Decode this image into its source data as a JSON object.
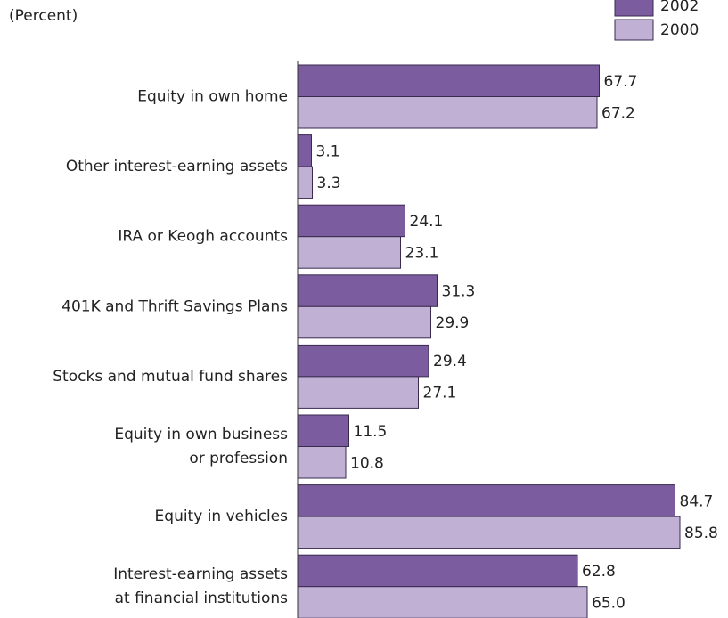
{
  "chart_data": {
    "type": "bar",
    "orientation": "horizontal",
    "subtitle": "(Percent)",
    "categories": [
      "Equity in own home",
      "Other interest-earning assets",
      "IRA or Keogh accounts",
      "401K and Thrift Savings Plans",
      "Stocks and mutual fund shares",
      "Equity in own business\nor profession",
      "Equity in vehicles",
      "Interest-earning assets\nat financial institutions"
    ],
    "series": [
      {
        "name": "2002",
        "color": "#7b5c9e",
        "values": [
          67.7,
          3.1,
          24.1,
          31.3,
          29.4,
          11.5,
          84.7,
          62.8
        ],
        "value_labels": [
          "67.7",
          "3.1",
          "24.1",
          "31.3",
          "29.4",
          "11.5",
          "84.7",
          "62.8"
        ]
      },
      {
        "name": "2000",
        "color": "#c0b0d4",
        "values": [
          67.2,
          3.3,
          23.1,
          29.9,
          27.1,
          10.8,
          85.8,
          65.0
        ],
        "value_labels": [
          "67.2",
          "3.3",
          "23.1",
          "29.9",
          "27.1",
          "10.8",
          "85.8",
          "65.0"
        ]
      }
    ],
    "xlim": [
      0,
      90
    ],
    "legend": "top-right"
  }
}
